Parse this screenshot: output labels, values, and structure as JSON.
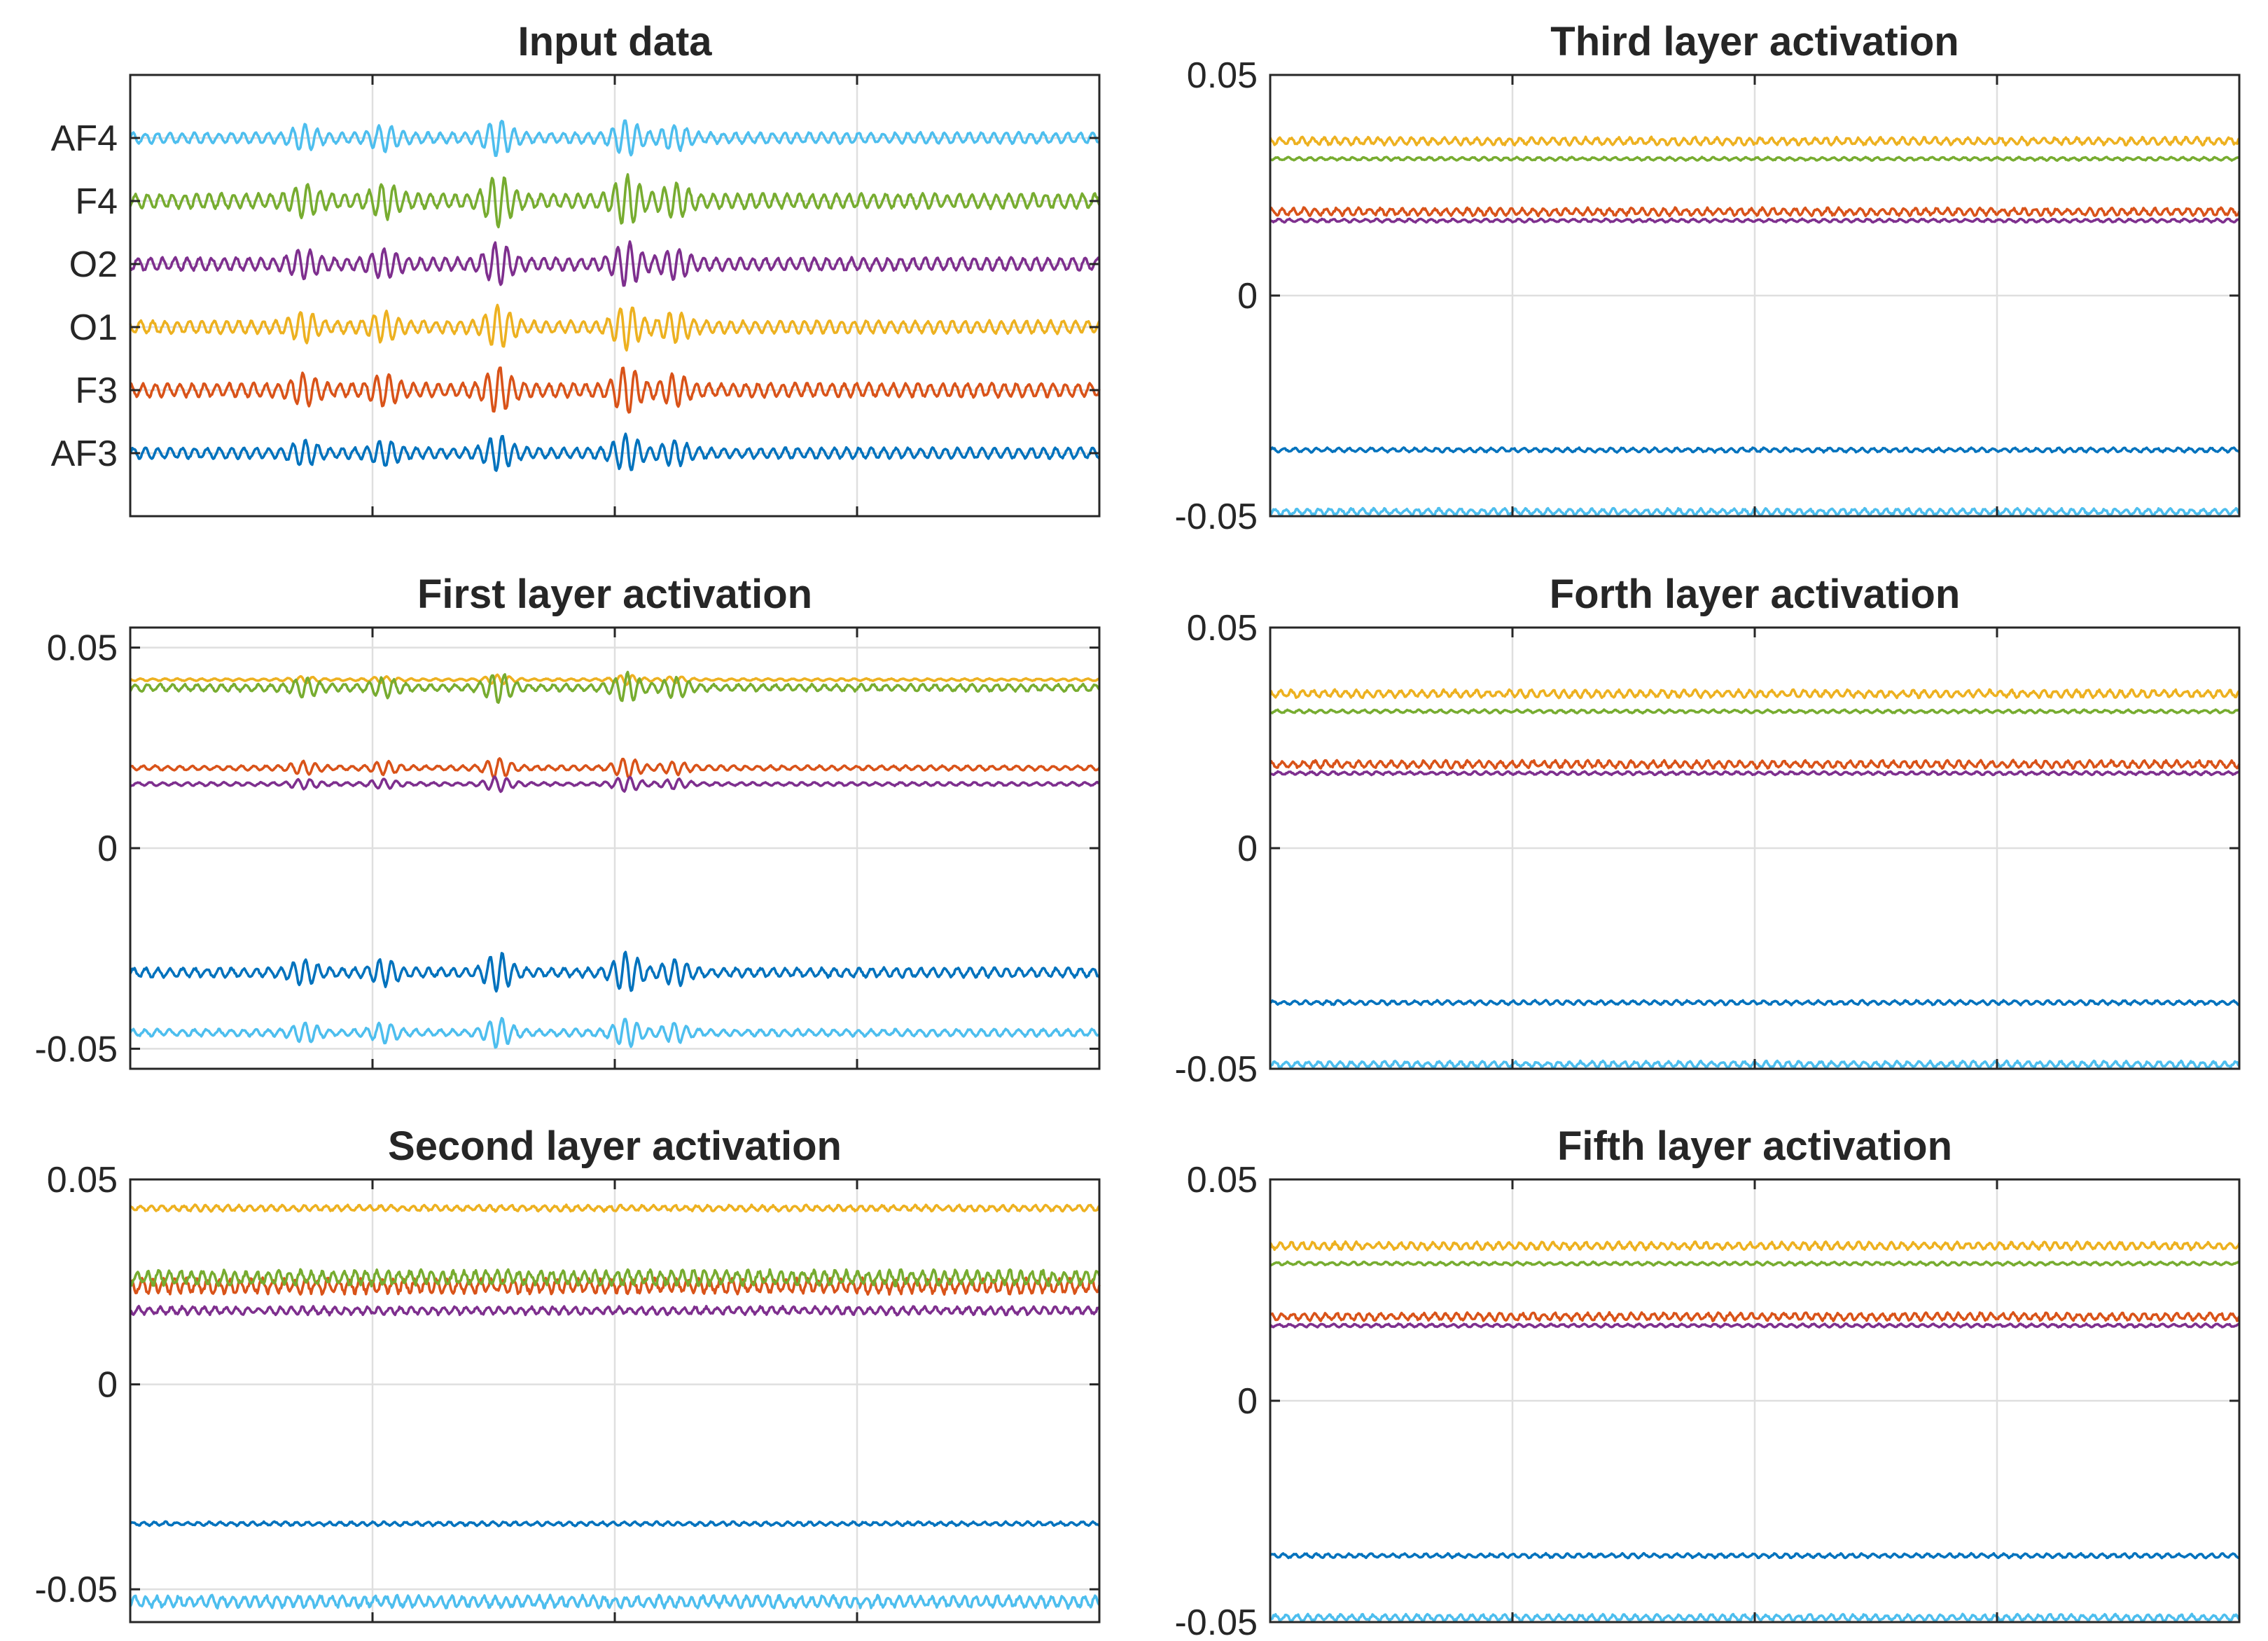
{
  "colors": {
    "AF3": "#0072bd",
    "F3": "#d95319",
    "O1": "#edb120",
    "O2": "#7e2f8e",
    "F4": "#77ac30",
    "AF4": "#4dbeee",
    "axis": "#262626",
    "grid": "#dfdfdf"
  },
  "channels": [
    "AF3",
    "F3",
    "O1",
    "O2",
    "F4",
    "AF4"
  ],
  "chart_data": [
    {
      "id": "input",
      "type": "line",
      "title": "Input data",
      "xlabel": "",
      "ylabel": "",
      "x_range": [
        0,
        4
      ],
      "ylim": [
        0,
        7
      ],
      "y_tick_labels": [
        "AF3",
        "F3",
        "O1",
        "O2",
        "F4",
        "AF4"
      ],
      "y_tick_values": [
        1,
        2,
        3,
        4,
        5,
        6
      ],
      "grid": true,
      "series": [
        {
          "name": "AF3",
          "baseline": 1,
          "amplitude": 0.22
        },
        {
          "name": "F3",
          "baseline": 2,
          "amplitude": 0.28
        },
        {
          "name": "O1",
          "baseline": 3,
          "amplitude": 0.26
        },
        {
          "name": "O2",
          "baseline": 4,
          "amplitude": 0.26
        },
        {
          "name": "F4",
          "baseline": 5,
          "amplitude": 0.3
        },
        {
          "name": "AF4",
          "baseline": 6,
          "amplitude": 0.22
        }
      ]
    },
    {
      "id": "first",
      "type": "line",
      "title": "First layer activation",
      "x_range": [
        0,
        4
      ],
      "ylim": [
        -0.055,
        0.055
      ],
      "y_tick_labels": [
        "0.05",
        "0",
        "-0.05"
      ],
      "y_tick_values": [
        0.05,
        0,
        -0.05
      ],
      "grid": true,
      "series": [
        {
          "name": "AF3",
          "baseline": -0.031,
          "amplitude": 0.004
        },
        {
          "name": "F3",
          "baseline": 0.02,
          "amplitude": 0.002
        },
        {
          "name": "O1",
          "baseline": 0.042,
          "amplitude": 0.001
        },
        {
          "name": "O2",
          "baseline": 0.016,
          "amplitude": 0.0015
        },
        {
          "name": "F4",
          "baseline": 0.04,
          "amplitude": 0.003
        },
        {
          "name": "AF4",
          "baseline": -0.046,
          "amplitude": 0.003
        }
      ]
    },
    {
      "id": "second",
      "type": "line",
      "title": "Second layer activation",
      "x_range": [
        0,
        4
      ],
      "ylim": [
        -0.058,
        0.05
      ],
      "y_tick_labels": [
        "0.05",
        "0",
        "-0.05"
      ],
      "y_tick_values": [
        0.05,
        0,
        -0.05
      ],
      "grid": true,
      "series": [
        {
          "name": "AF3",
          "baseline": -0.034,
          "amplitude": 0.0004
        },
        {
          "name": "F3",
          "baseline": 0.024,
          "amplitude": 0.0015
        },
        {
          "name": "O1",
          "baseline": 0.043,
          "amplitude": 0.0006
        },
        {
          "name": "O2",
          "baseline": 0.018,
          "amplitude": 0.0008
        },
        {
          "name": "F4",
          "baseline": 0.026,
          "amplitude": 0.0015
        },
        {
          "name": "AF4",
          "baseline": -0.053,
          "amplitude": 0.0012
        }
      ]
    },
    {
      "id": "third",
      "type": "line",
      "title": "Third layer activation",
      "x_range": [
        0,
        4
      ],
      "ylim": [
        -0.05,
        0.05
      ],
      "y_tick_labels": [
        "0.05",
        "0",
        "-0.05"
      ],
      "y_tick_values": [
        0.05,
        0,
        -0.05
      ],
      "grid": true,
      "series": [
        {
          "name": "AF3",
          "baseline": -0.035,
          "amplitude": 0.0004
        },
        {
          "name": "F3",
          "baseline": 0.019,
          "amplitude": 0.0007
        },
        {
          "name": "O1",
          "baseline": 0.035,
          "amplitude": 0.0007
        },
        {
          "name": "O2",
          "baseline": 0.017,
          "amplitude": 0.0003
        },
        {
          "name": "F4",
          "baseline": 0.031,
          "amplitude": 0.0003
        },
        {
          "name": "AF4",
          "baseline": -0.049,
          "amplitude": 0.0006
        }
      ]
    },
    {
      "id": "forth",
      "type": "line",
      "title": "Forth layer activation",
      "x_range": [
        0,
        4
      ],
      "ylim": [
        -0.05,
        0.05
      ],
      "y_tick_labels": [
        "0.05",
        "0",
        "-0.05"
      ],
      "y_tick_values": [
        0.05,
        0,
        -0.05
      ],
      "grid": true,
      "series": [
        {
          "name": "AF3",
          "baseline": -0.035,
          "amplitude": 0.0004
        },
        {
          "name": "F3",
          "baseline": 0.019,
          "amplitude": 0.0007
        },
        {
          "name": "O1",
          "baseline": 0.035,
          "amplitude": 0.0007
        },
        {
          "name": "O2",
          "baseline": 0.017,
          "amplitude": 0.0003
        },
        {
          "name": "F4",
          "baseline": 0.031,
          "amplitude": 0.0003
        },
        {
          "name": "AF4",
          "baseline": -0.049,
          "amplitude": 0.0006
        }
      ]
    },
    {
      "id": "fifth",
      "type": "line",
      "title": "Fifth layer activation",
      "x_range": [
        0,
        4
      ],
      "ylim": [
        -0.05,
        0.05
      ],
      "y_tick_labels": [
        "0.05",
        "0",
        "-0.05"
      ],
      "y_tick_values": [
        0.05,
        0,
        -0.05
      ],
      "grid": true,
      "series": [
        {
          "name": "AF3",
          "baseline": -0.035,
          "amplitude": 0.0004
        },
        {
          "name": "F3",
          "baseline": 0.019,
          "amplitude": 0.0007
        },
        {
          "name": "O1",
          "baseline": 0.035,
          "amplitude": 0.0007
        },
        {
          "name": "O2",
          "baseline": 0.017,
          "amplitude": 0.0003
        },
        {
          "name": "F4",
          "baseline": 0.031,
          "amplitude": 0.0003
        },
        {
          "name": "AF4",
          "baseline": -0.049,
          "amplitude": 0.0006
        }
      ]
    }
  ]
}
